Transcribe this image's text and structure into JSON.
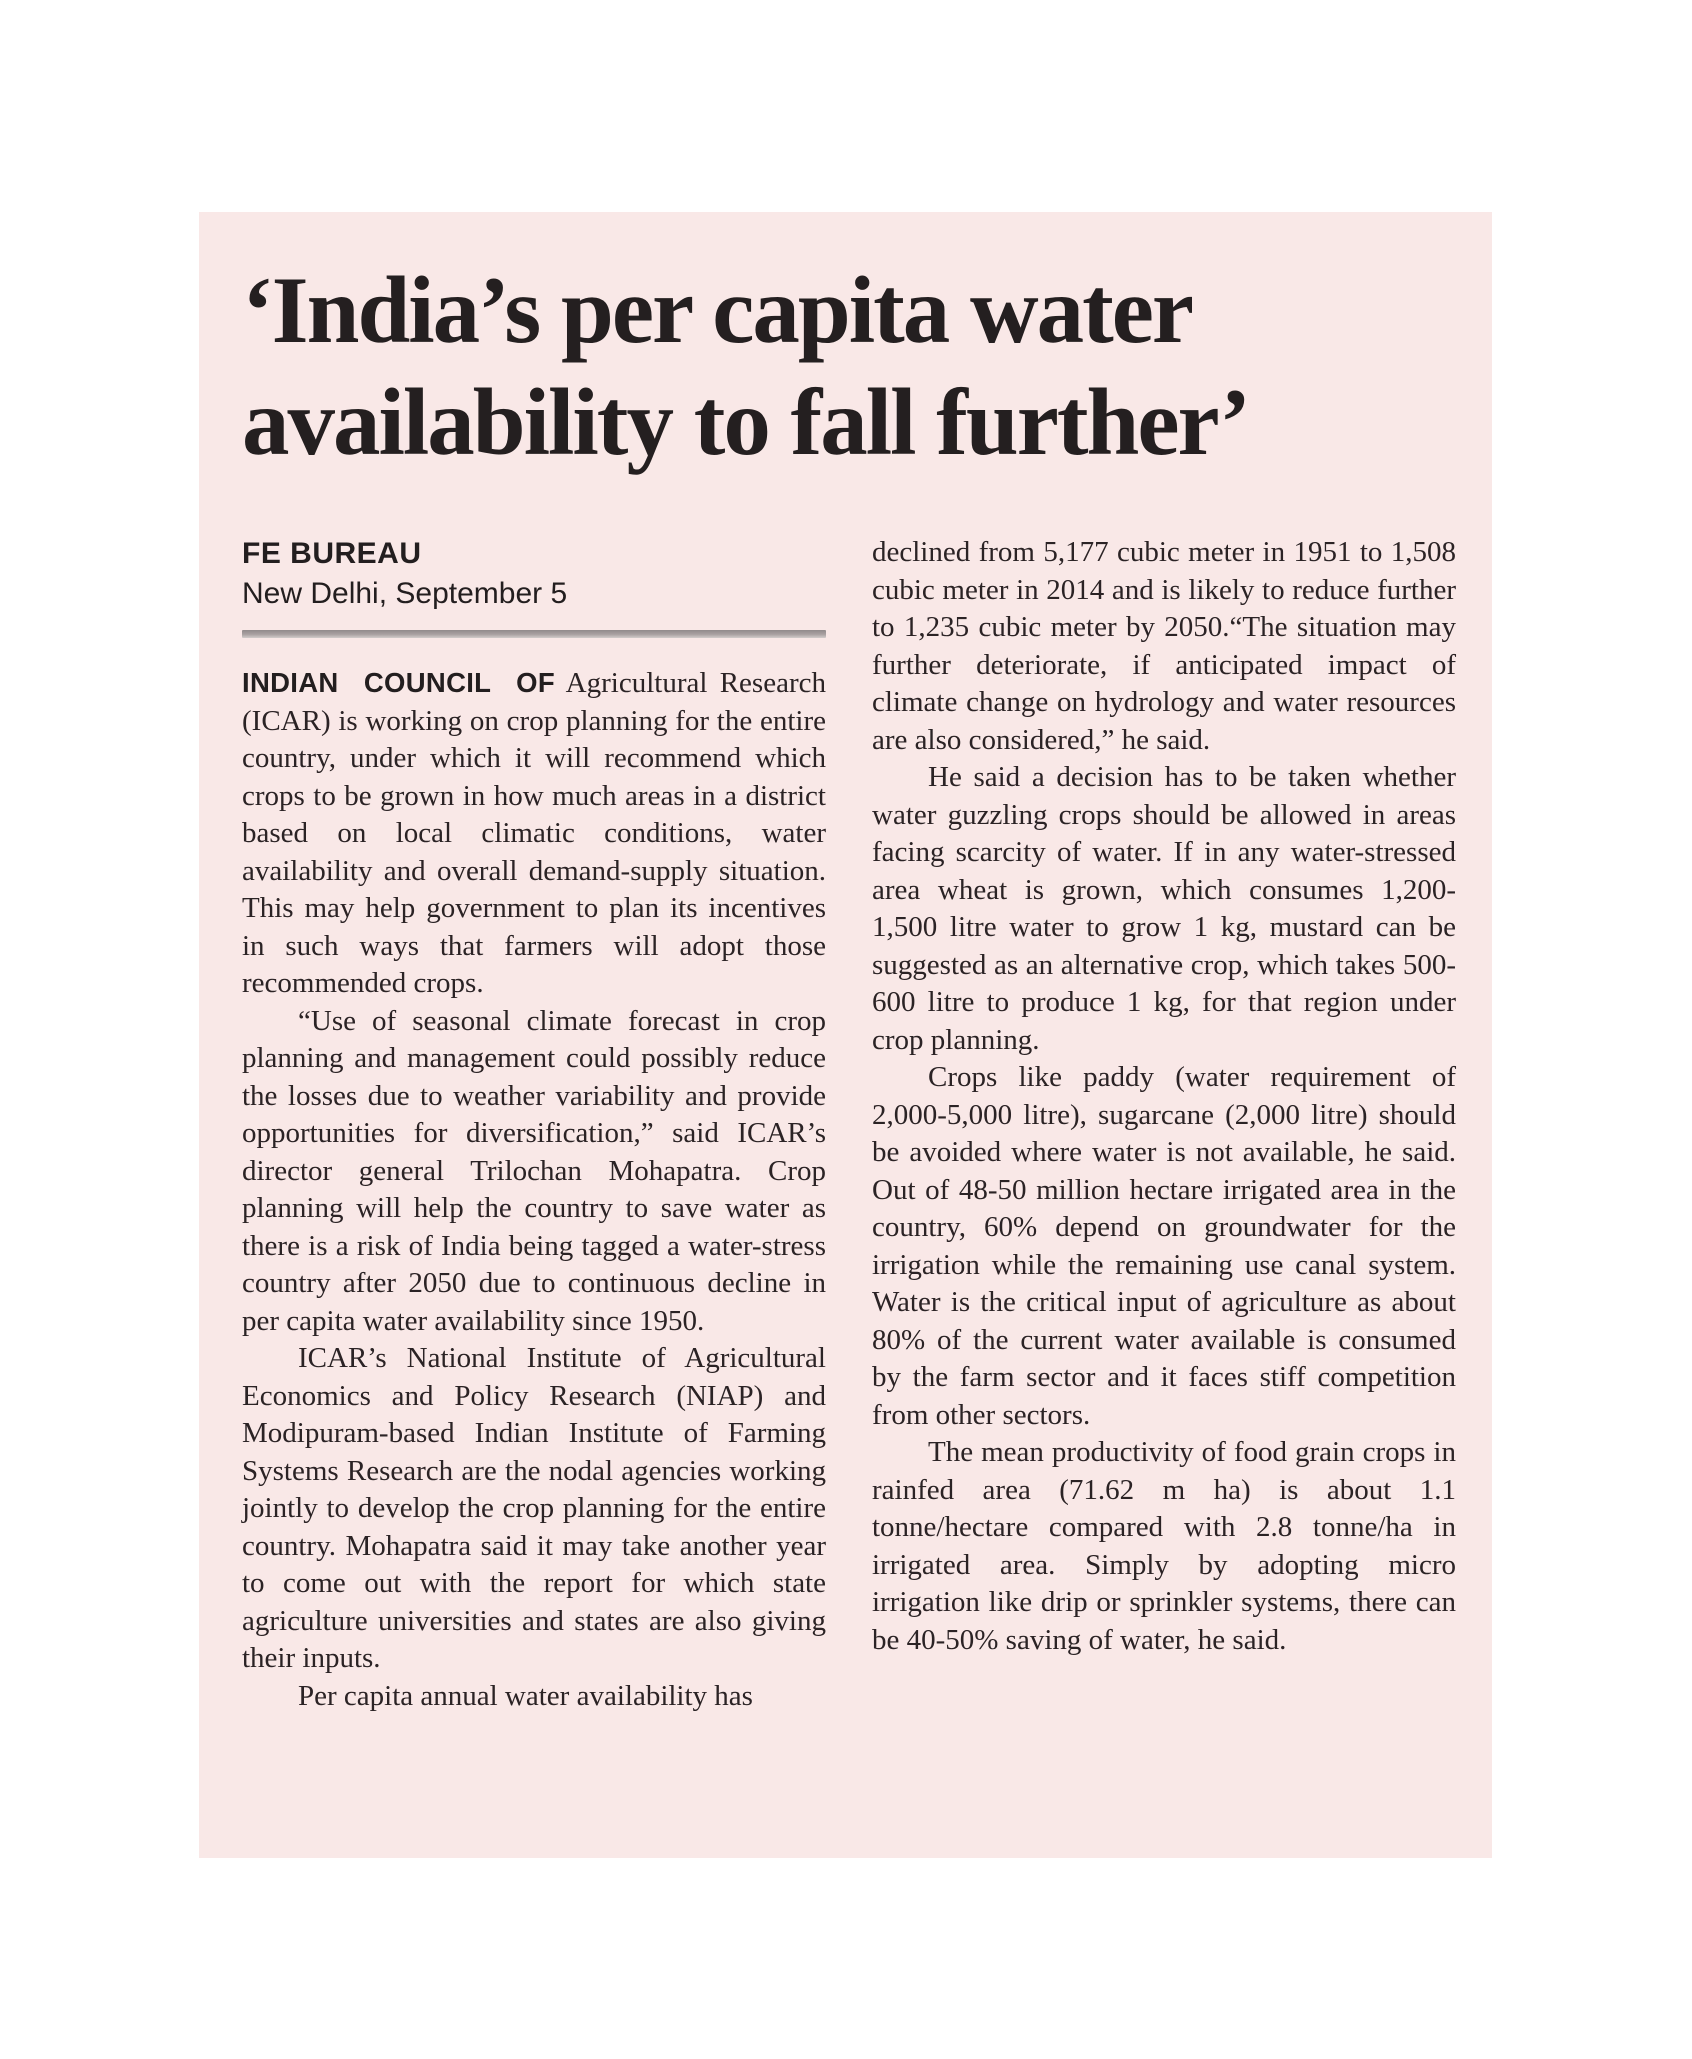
{
  "headline": {
    "line1": "‘India’s per capita water",
    "line2": "availability to fall further’"
  },
  "byline": {
    "bureau": "FE BUREAU",
    "dateline": "New Delhi, September 5"
  },
  "article": {
    "lead_in": "INDIAN COUNCIL OF",
    "left_paragraphs": [
      "Agricultural Research (ICAR) is working on crop planning for the entire country, under which it will recommend which crops to be grown in how much areas in a district based on local climatic conditions, water availability and overall demand-supply situation. This may help government to plan its incentives in such ways that farmers will adopt those recommended crops.",
      "“Use of seasonal climate forecast in crop planning and management could possibly reduce the losses due to weather variability and provide opportunities for diversification,” said ICAR’s director general Trilochan Mohapatra. Crop planning will help the country to save water as there is a risk of India being tagged a water-stress country after 2050 due to continuous decline in per capita water availability since 1950.",
      "ICAR’s National Institute of Agricultural Economics and Policy Research (NIAP) and Modipuram-based Indian Institute of Farming Systems Research are the nodal agencies working jointly to develop the crop planning for the entire country. Mohapatra said it may take another year to come out with the report for which state agriculture universities and states are also giving their inputs.",
      "Per capita annual water availability has"
    ],
    "right_paragraphs": [
      "declined from 5,177 cubic meter in 1951 to 1,508 cubic meter in 2014 and is likely to reduce further to 1,235 cubic meter by 2050.“The situation may further deteriorate, if anticipated impact of climate change on hydrology and water resources are also considered,” he said.",
      "He said a decision has to be taken whether water guzzling crops should be allowed in areas facing scarcity of water. If in any water-stressed area wheat is grown, which consumes 1,200-1,500 litre water to grow 1 kg, mustard can be suggested as an alternative crop, which takes 500-600 litre to produce 1 kg, for that region under crop planning.",
      "Crops like paddy (water requirement of 2,000-5,000 litre), sugarcane (2,000 litre) should be avoided where water is not available, he said. Out of 48-50 million hectare irrigated area in the country, 60% depend on groundwater for the irrigation while the remaining use canal system. Water is the critical input of agriculture as about 80% of the current water available is consumed by the farm sector and it faces stiff competition from other sectors.",
      "The mean productivity of food grain crops in rainfed area (71.62 m ha) is about 1.1 tonne/hectare compared with 2.8 tonne/ha in irrigated area. Simply by adopting micro irrigation like drip or sprinkler systems, there can be 40-50% saving of water, he said."
    ]
  },
  "colors": {
    "card_background": "#f9e8e7",
    "headline_text": "#241f20",
    "body_text": "#2b2325",
    "divider_rule": "#a9a1a1",
    "page_background": "#ffffff"
  }
}
